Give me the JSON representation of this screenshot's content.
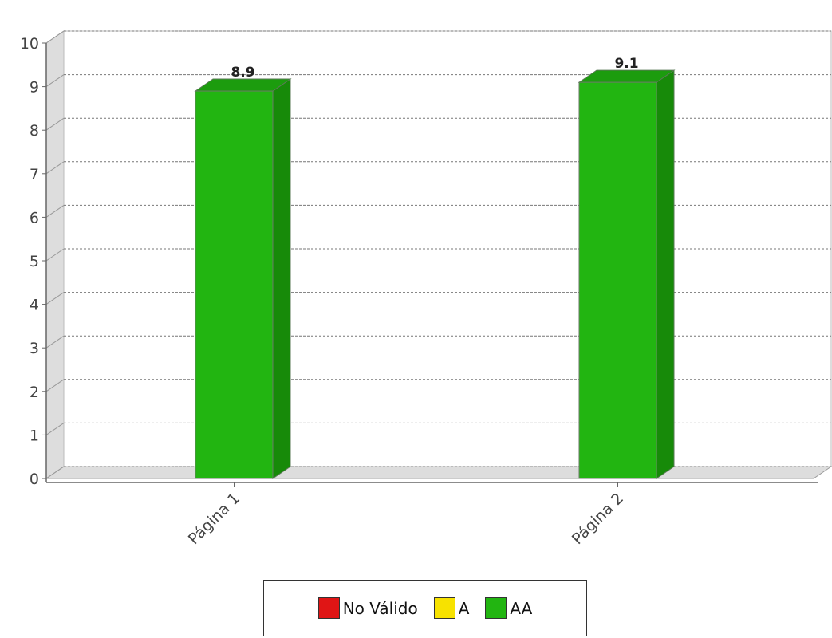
{
  "chart_data": {
    "type": "bar",
    "categories": [
      "Página 1",
      "Página 2"
    ],
    "values": [
      8.9,
      9.1
    ],
    "data_labels": [
      "8.9",
      "9.1"
    ],
    "ylim": [
      0,
      10
    ],
    "yticks": [
      "0",
      "1",
      "2",
      "3",
      "4",
      "5",
      "6",
      "7",
      "8",
      "9",
      "10"
    ],
    "grid": true,
    "style": "3d",
    "bar_color": "#22b511",
    "legend": {
      "placement": "bottom",
      "entries": [
        {
          "label": "No Válido",
          "color": "#e01515"
        },
        {
          "label": "A",
          "color": "#f7e200"
        },
        {
          "label": "AA",
          "color": "#22b511"
        }
      ]
    }
  }
}
